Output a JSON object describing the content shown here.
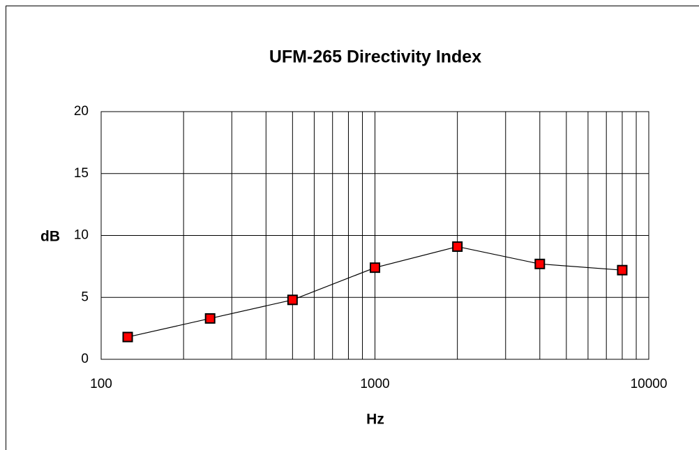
{
  "chart_data": {
    "type": "line",
    "title": "UFM-265 Directivity Index",
    "xlabel": "Hz",
    "ylabel": "dB",
    "xscale": "log",
    "x": [
      125,
      250,
      500,
      1000,
      2000,
      4000,
      8000
    ],
    "series": [
      {
        "name": "Directivity Index",
        "color": "#ff0000",
        "line_color": "#000000",
        "values": [
          1.8,
          3.3,
          4.8,
          7.4,
          9.1,
          7.7,
          7.2
        ]
      }
    ],
    "xlim": [
      100,
      10000
    ],
    "xticks": [
      100,
      1000,
      10000
    ],
    "xminorticks": [
      200,
      300,
      400,
      500,
      600,
      700,
      800,
      900,
      2000,
      3000,
      4000,
      5000,
      6000,
      7000,
      8000,
      9000
    ],
    "ylim": [
      0,
      20
    ],
    "yticks": [
      0,
      5,
      10,
      15,
      20
    ],
    "grid": true
  }
}
